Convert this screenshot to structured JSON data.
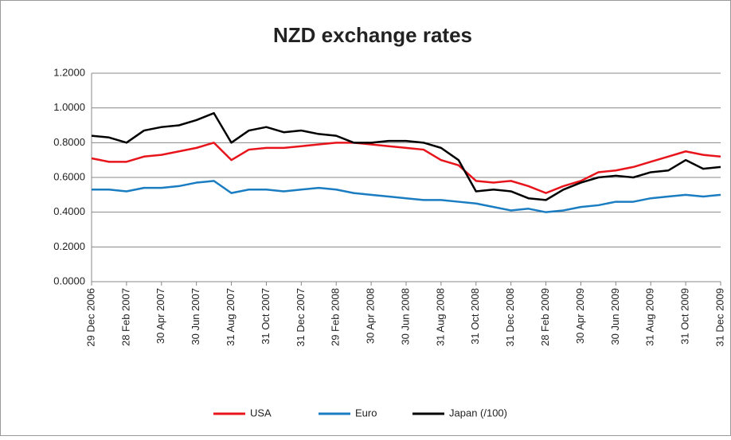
{
  "chart_data": {
    "type": "line",
    "title": "NZD exchange rates",
    "categories": [
      "29 Dec 2006",
      null,
      "28 Feb 2007",
      null,
      "30 Apr 2007",
      null,
      "30 Jun 2007",
      null,
      "31 Aug 2007",
      null,
      "31 Oct 2007",
      null,
      "31 Dec 2007",
      null,
      "29 Feb 2008",
      null,
      "30 Apr 2008",
      null,
      "30 Jun 2008",
      null,
      "31 Aug 2008",
      null,
      "31 Oct 2008",
      null,
      "31 Dec 2008",
      null,
      "28 Feb 2009",
      null,
      "30 Apr 2009",
      null,
      "30 Jun 2009",
      null,
      "31 Aug 2009",
      null,
      "31 Oct 2009",
      null,
      "31 Dec 2009"
    ],
    "series": [
      {
        "name": "USA",
        "color": "#e8141b",
        "values": [
          0.71,
          0.69,
          0.69,
          0.72,
          0.73,
          0.75,
          0.77,
          0.8,
          0.7,
          0.76,
          0.77,
          0.77,
          0.78,
          0.79,
          0.8,
          0.8,
          0.79,
          0.78,
          0.77,
          0.76,
          0.7,
          0.67,
          0.58,
          0.57,
          0.58,
          0.55,
          0.51,
          0.55,
          0.58,
          0.63,
          0.64,
          0.66,
          0.69,
          0.72,
          0.75,
          0.73,
          0.72
        ]
      },
      {
        "name": "Euro",
        "color": "#1a7cc1",
        "values": [
          0.53,
          0.53,
          0.52,
          0.54,
          0.54,
          0.55,
          0.57,
          0.58,
          0.51,
          0.53,
          0.53,
          0.52,
          0.53,
          0.54,
          0.53,
          0.51,
          0.5,
          0.49,
          0.48,
          0.47,
          0.47,
          0.46,
          0.45,
          0.43,
          0.41,
          0.42,
          0.4,
          0.41,
          0.43,
          0.44,
          0.46,
          0.46,
          0.48,
          0.49,
          0.5,
          0.49,
          0.5
        ]
      },
      {
        "name": "Japan (/100)",
        "color": "#000000",
        "values": [
          0.84,
          0.83,
          0.8,
          0.87,
          0.89,
          0.9,
          0.93,
          0.97,
          0.8,
          0.87,
          0.89,
          0.86,
          0.87,
          0.85,
          0.84,
          0.8,
          0.8,
          0.81,
          0.81,
          0.8,
          0.77,
          0.7,
          0.52,
          0.53,
          0.52,
          0.48,
          0.47,
          0.53,
          0.57,
          0.6,
          0.61,
          0.6,
          0.63,
          0.64,
          0.7,
          0.65,
          0.66
        ]
      }
    ],
    "ylim": [
      0,
      1.2
    ],
    "yticks": [
      {
        "value": 0,
        "label": "0.0000"
      },
      {
        "value": 0.2,
        "label": "0.2000"
      },
      {
        "value": 0.4,
        "label": "0.4000"
      },
      {
        "value": 0.6,
        "label": "0.6000"
      },
      {
        "value": 0.8,
        "label": "0.8000"
      },
      {
        "value": 1.0,
        "label": "1.0000"
      },
      {
        "value": 1.2,
        "label": "1.2000"
      }
    ],
    "grid": true,
    "legend": "bottom"
  }
}
